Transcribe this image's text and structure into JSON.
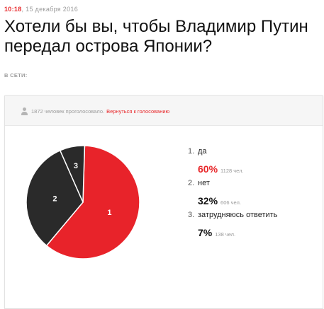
{
  "meta": {
    "time": "10:18",
    "date": ", 15 декабря 2016"
  },
  "title": "Хотели бы вы, чтобы Владимир Путин передал острова Японии?",
  "online_label": "В СЕТИ:",
  "poll": {
    "voters_text": "1872 человек проголосовало.",
    "back_link": "Вернуться к голосованию",
    "options": [
      {
        "num": "1.",
        "label": "да",
        "percent": "60%",
        "count": "1128 чел."
      },
      {
        "num": "2.",
        "label": "нет",
        "percent": "32%",
        "count": "606 чел."
      },
      {
        "num": "3.",
        "label": "затрудняюсь ответить",
        "percent": "7%",
        "count": "138 чел."
      }
    ]
  },
  "chart_data": {
    "type": "pie",
    "categories": [
      "1",
      "2",
      "3"
    ],
    "values": [
      60,
      32,
      7
    ],
    "colors": [
      "#e8232a",
      "#2a2a2a",
      "#2a2a2a"
    ],
    "title": ""
  },
  "colors": {
    "accent": "#e8282b",
    "dark_slice": "#2a2a2a"
  }
}
